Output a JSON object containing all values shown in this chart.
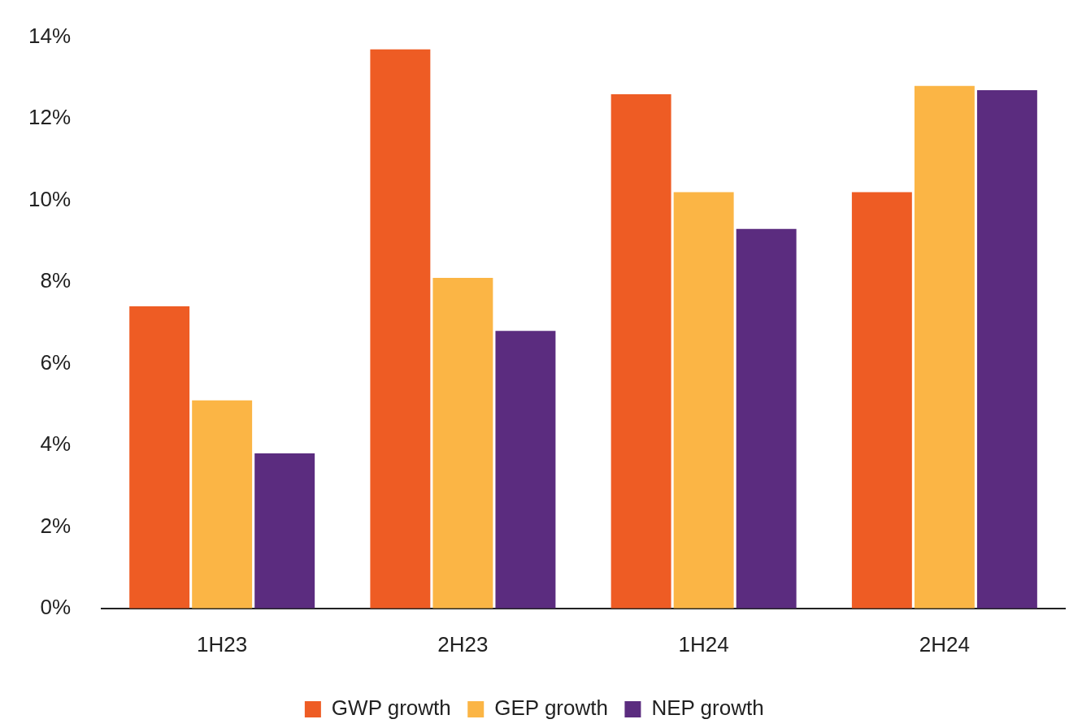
{
  "chart_data": {
    "type": "bar",
    "categories": [
      "1H23",
      "2H23",
      "1H24",
      "2H24"
    ],
    "series": [
      {
        "name": "GWP growth",
        "color": "#ee5c24",
        "values": [
          7.4,
          13.7,
          12.6,
          10.2
        ]
      },
      {
        "name": "GEP growth",
        "color": "#fbb545",
        "values": [
          5.1,
          8.1,
          10.2,
          12.8
        ]
      },
      {
        "name": "NEP growth",
        "color": "#5b2c7f",
        "values": [
          3.8,
          6.8,
          9.3,
          12.7
        ]
      }
    ],
    "ylim": [
      0,
      14
    ],
    "yticks": [
      {
        "value": 0,
        "label": "0%"
      },
      {
        "value": 2,
        "label": "2%"
      },
      {
        "value": 4,
        "label": "4%"
      },
      {
        "value": 6,
        "label": "6%"
      },
      {
        "value": 8,
        "label": "8%"
      },
      {
        "value": 10,
        "label": "10%"
      },
      {
        "value": 12,
        "label": "12%"
      },
      {
        "value": 14,
        "label": "14%"
      }
    ],
    "grid": false,
    "legend": "bottom"
  }
}
